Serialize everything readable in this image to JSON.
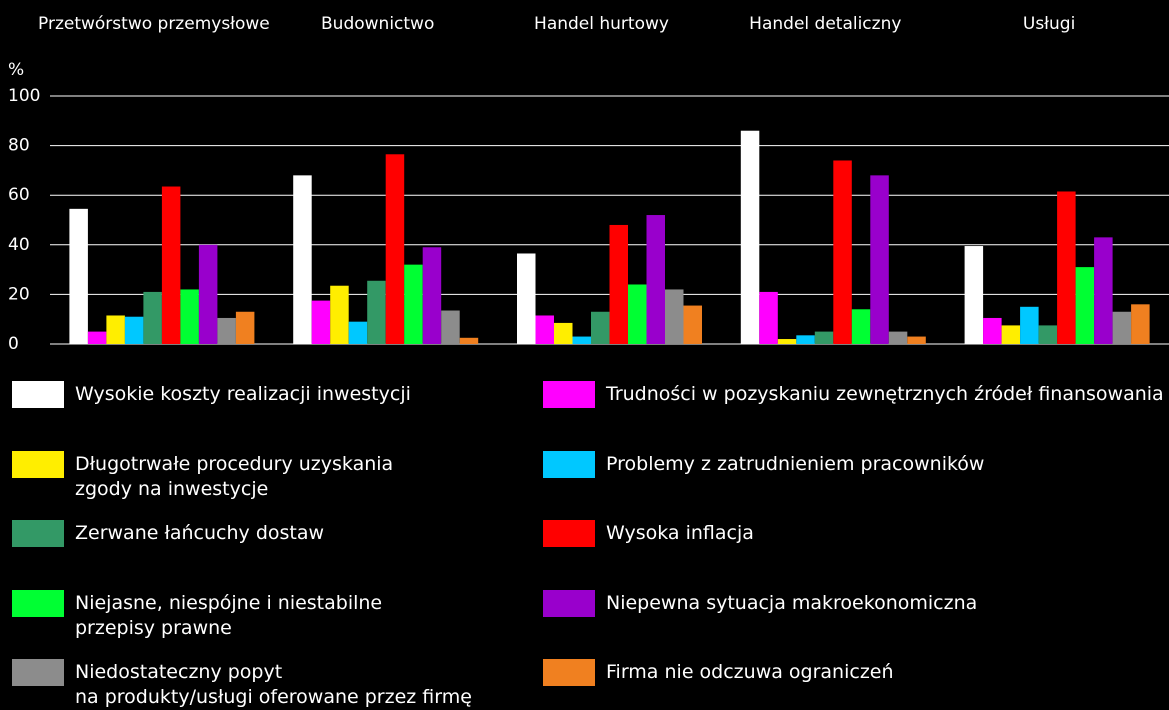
{
  "chart_data": {
    "type": "bar",
    "y_label": "%",
    "categories": [
      "Przetwórstwo przemysłowe",
      "Budownictwo",
      "Handel hurtowy",
      "Handel detaliczny",
      "Usługi"
    ],
    "series": [
      {
        "name": "Wysokie koszty realizacji inwestycji",
        "color": "#ffffff",
        "values": [
          54.5,
          68,
          36.5,
          86,
          39.5
        ]
      },
      {
        "name": "Trudności w pozyskaniu zewnętrznych źródeł finansowania",
        "color": "#ff00ff",
        "values": [
          5,
          17.5,
          11.5,
          21,
          10.5
        ]
      },
      {
        "name": "Długotrwałe procedury uzyskania\nzgody na inwestycje",
        "color": "#ffee00",
        "values": [
          11.5,
          23.5,
          8.5,
          2,
          7.5
        ]
      },
      {
        "name": "Problemy z zatrudnieniem pracowników",
        "color": "#00c8ff",
        "values": [
          11,
          9,
          3,
          3.5,
          15
        ]
      },
      {
        "name": "Zerwane łańcuchy dostaw",
        "color": "#339966",
        "values": [
          21,
          25.5,
          13,
          5,
          7.5
        ]
      },
      {
        "name": "Wysoka inflacja",
        "color": "#ff0000",
        "values": [
          63.5,
          76.5,
          48,
          74,
          61.5
        ]
      },
      {
        "name": "Niejasne, niespójne i niestabilne\nprzepisy prawne",
        "color": "#00ff33",
        "values": [
          22,
          32,
          24,
          14,
          31
        ]
      },
      {
        "name": "Niepewna sytuacja makroekonomiczna",
        "color": "#9900cc",
        "values": [
          40,
          39,
          52,
          68,
          43
        ]
      },
      {
        "name": "Niedostateczny popyt\nna produkty/usługi oferowane przez firmę",
        "color": "#8c8c8c",
        "values": [
          10.5,
          13.5,
          22,
          5,
          13
        ]
      },
      {
        "name": "Firma nie odczuwa ograniczeń",
        "color": "#f08020",
        "values": [
          13,
          2.5,
          15.5,
          3,
          16
        ]
      }
    ],
    "ylim": [
      0,
      100
    ],
    "yticks": [
      0,
      20,
      40,
      60,
      80,
      100
    ],
    "grid": true
  }
}
